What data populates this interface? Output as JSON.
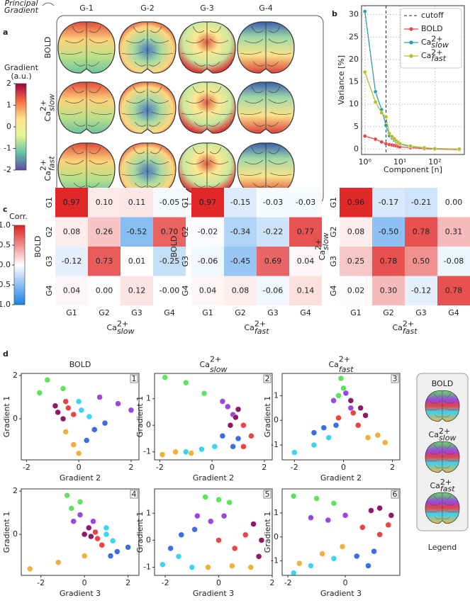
{
  "panel_labels": [
    "a",
    "b",
    "c",
    "d"
  ],
  "chart_data": [
    {
      "type": "brain-maps",
      "annotation": [
        "Principal",
        "Gradient"
      ],
      "column_titles": [
        "G-1",
        "G-2",
        "G-3",
        "G-4"
      ],
      "row_labels": [
        "BOLD",
        {
          "text": "Ca",
          "sup": "2+",
          "sub": "slow"
        },
        {
          "text": "Ca",
          "sup": "2+",
          "sub": "fast"
        }
      ],
      "colorbar": {
        "title": [
          "Gradient",
          "(a.u.)"
        ],
        "lim": [
          -2,
          2
        ],
        "ticks": [
          2,
          1,
          0,
          -1,
          -2
        ]
      }
    },
    {
      "type": "line",
      "xlabel": "Component [n]",
      "ylabel": "Variance [%]",
      "log_x": true,
      "grid": true,
      "legend": "upper right",
      "x": [
        1,
        2,
        3,
        4,
        5,
        6,
        7,
        8,
        9,
        10,
        20,
        50,
        100,
        500
      ],
      "series": [
        {
          "name": "BOLD",
          "color": "#e84545",
          "values": [
            2.9,
            2.2,
            1.6,
            1.2,
            1.0,
            0.9,
            0.8,
            0.7,
            0.6,
            0.5,
            0.3,
            0.1,
            0.0,
            -0.1
          ]
        },
        {
          "name": {
            "text": "Ca",
            "sup": "2+",
            "sub": "slow"
          },
          "color": "#2a9db5",
          "values": [
            30.7,
            12.8,
            8.8,
            5.3,
            3.0,
            2.5,
            2.0,
            1.6,
            1.3,
            1.1,
            0.6,
            0.3,
            0.1,
            0.0
          ]
        },
        {
          "name": {
            "text": "Ca",
            "sup": "2+",
            "sub": "fast"
          },
          "color": "#b5bd2a",
          "values": [
            17.2,
            10.5,
            8.1,
            7.2,
            3.5,
            2.8,
            2.3,
            1.8,
            1.5,
            1.2,
            0.7,
            0.3,
            0.1,
            0.0
          ]
        }
      ],
      "cutoff": {
        "name": "cutoff",
        "value": 4
      },
      "xlim": [
        0.8,
        700
      ],
      "xticks": [
        {
          "value": 1,
          "label": "10⁰"
        },
        {
          "value": 10,
          "label": "10¹"
        },
        {
          "value": 100,
          "label": "10²"
        }
      ],
      "ylim": [
        -1.2,
        32
      ],
      "yticks": [
        0,
        5,
        10,
        15,
        20,
        25,
        30
      ]
    },
    {
      "type": "heatmap",
      "ylabel": "BOLD",
      "xlabel": {
        "text": "Ca",
        "sup": "2+",
        "sub": "slow"
      },
      "row_labels": [
        "G1",
        "G2",
        "G3",
        "G4"
      ],
      "col_labels": [
        "G1",
        "G2",
        "G3",
        "G4"
      ],
      "values": [
        [
          0.97,
          0.1,
          0.11,
          -0.05
        ],
        [
          0.08,
          0.26,
          -0.52,
          0.7
        ],
        [
          -0.12,
          0.73,
          0.01,
          -0.25
        ],
        [
          0.04,
          0.0,
          0.12,
          -0.0
        ]
      ],
      "value_labels": [
        [
          "0.97",
          "0.10",
          "0.11",
          "-0.05"
        ],
        [
          "0.08",
          "0.26",
          "-0.52",
          "0.70"
        ],
        [
          "-0.12",
          "0.73",
          "0.01",
          "-0.25"
        ],
        [
          "0.04",
          "0.00",
          "0.12",
          "-0.00"
        ]
      ]
    },
    {
      "type": "heatmap",
      "ylabel": "BOLD",
      "xlabel": {
        "text": "Ca",
        "sup": "2+",
        "sub": "fast"
      },
      "row_labels": [
        "G1",
        "G2",
        "G3",
        "G4"
      ],
      "col_labels": [
        "G1",
        "G2",
        "G3",
        "G4"
      ],
      "values": [
        [
          0.97,
          -0.15,
          -0.03,
          -0.03
        ],
        [
          -0.02,
          -0.34,
          -0.22,
          0.77
        ],
        [
          -0.06,
          -0.45,
          0.69,
          0.04
        ],
        [
          0.04,
          0.08,
          -0.06,
          0.14
        ]
      ],
      "value_labels": [
        [
          "0.97",
          "-0.15",
          "-0.03",
          "-0.03"
        ],
        [
          "-0.02",
          "-0.34",
          "-0.22",
          "0.77"
        ],
        [
          "-0.06",
          "-0.45",
          "0.69",
          "0.04"
        ],
        [
          "0.04",
          "0.08",
          "-0.06",
          "0.14"
        ]
      ]
    },
    {
      "type": "heatmap",
      "ylabel": {
        "text": "Ca",
        "sup": "2+",
        "sub": "slow"
      },
      "xlabel": {
        "text": "Ca",
        "sup": "2+",
        "sub": "fast"
      },
      "row_labels": [
        "G1",
        "G2",
        "G3",
        "G4"
      ],
      "col_labels": [
        "G1",
        "G2",
        "G3",
        "G4"
      ],
      "values": [
        [
          0.96,
          -0.17,
          -0.21,
          0.0
        ],
        [
          0.08,
          -0.5,
          0.78,
          0.31
        ],
        [
          0.25,
          0.78,
          0.5,
          -0.08
        ],
        [
          0.02,
          0.3,
          -0.12,
          0.78
        ]
      ],
      "value_labels": [
        [
          "0.96",
          "-0.17",
          "-0.21",
          "0.00"
        ],
        [
          "0.08",
          "-0.50",
          "0.78",
          "0.31"
        ],
        [
          "0.25",
          "0.78",
          "0.50",
          "-0.08"
        ],
        [
          "0.02",
          "0.30",
          "-0.12",
          "0.78"
        ]
      ]
    },
    {
      "type": "scatter",
      "number": "1",
      "xlabel": "Gradient 2",
      "ylabel": "Gradient 1",
      "xlim": [
        -2.2,
        2.3
      ],
      "ylim": [
        -1.9,
        2.1
      ],
      "xticks": [
        -2,
        0,
        2
      ],
      "yticks": [
        0,
        2
      ],
      "series": [
        {
          "color": "#5ee35e",
          "x": [
            -1.2,
            -0.6,
            -1.5
          ],
          "y": [
            1.8,
            1.4,
            1.2
          ]
        },
        {
          "color": "#9c46e0",
          "x": [
            0.8,
            1.5,
            2.0
          ],
          "y": [
            1.0,
            0.7,
            0.4
          ]
        },
        {
          "color": "#3cd4f0",
          "x": [
            0.1,
            0.4,
            0.0
          ],
          "y": [
            0.4,
            0.1,
            0.8
          ]
        },
        {
          "color": "#3a6fe0",
          "x": [
            0.6,
            0.3,
            1.0
          ],
          "y": [
            -0.5,
            -1.0,
            -0.2
          ]
        },
        {
          "color": "#e84444",
          "x": [
            -0.4,
            -0.2,
            -0.5
          ],
          "y": [
            0.5,
            0.2,
            0.8
          ]
        },
        {
          "color": "#8b1a6b",
          "x": [
            -0.8,
            -0.6,
            -0.9
          ],
          "y": [
            0.3,
            0.0,
            0.6
          ]
        },
        {
          "color": "#f0b040",
          "x": [
            -0.5,
            -0.2,
            0.0
          ],
          "y": [
            -0.6,
            -1.2,
            -1.6
          ]
        }
      ]
    },
    {
      "type": "scatter",
      "number": "2",
      "xlabel": "Gradient 2",
      "ylabel": "Gradient 1",
      "xlim": [
        -2.2,
        2.3
      ],
      "ylim": [
        -1.3,
        1.95
      ],
      "xticks": [
        -2,
        0,
        2
      ],
      "yticks": [
        -1,
        0,
        1
      ],
      "series": [
        {
          "color": "#5ee35e",
          "x": [
            -1.8,
            -1.0,
            -0.3
          ],
          "y": [
            1.8,
            1.6,
            1.2
          ]
        },
        {
          "color": "#9c46e0",
          "x": [
            0.4,
            0.8,
            0.6
          ],
          "y": [
            0.9,
            0.4,
            0.7
          ]
        },
        {
          "color": "#3cd4f0",
          "x": [
            -1.0,
            -0.4,
            0.1
          ],
          "y": [
            -1.0,
            -0.9,
            -0.8
          ]
        },
        {
          "color": "#3a6fe0",
          "x": [
            0.4,
            0.8,
            1.0
          ],
          "y": [
            -0.4,
            -0.8,
            -0.5
          ]
        },
        {
          "color": "#e84444",
          "x": [
            1.2,
            1.5,
            1.2
          ],
          "y": [
            0.0,
            -0.4,
            -0.8
          ]
        },
        {
          "color": "#8b1a6b",
          "x": [
            0.9,
            0.7,
            1.0
          ],
          "y": [
            0.3,
            0.0,
            0.6
          ]
        },
        {
          "color": "#f0b040",
          "x": [
            -1.9,
            -1.4,
            -0.8
          ],
          "y": [
            -1.1,
            -1.0,
            -1.05
          ]
        }
      ]
    },
    {
      "type": "scatter",
      "number": "3",
      "xlabel": "Gradient 2",
      "ylabel": "Gradient 1",
      "xlim": [
        -2.5,
        2.3
      ],
      "ylim": [
        -1.6,
        1.9
      ],
      "xticks": [
        -2,
        0,
        2
      ],
      "yticks": [
        -1,
        0,
        1
      ],
      "series": [
        {
          "color": "#5ee35e",
          "x": [
            -0.1,
            0.0,
            -0.2
          ],
          "y": [
            1.7,
            1.3,
            1.0
          ]
        },
        {
          "color": "#9c46e0",
          "x": [
            -0.4,
            0.3,
            0.1
          ],
          "y": [
            0.8,
            0.5,
            1.1
          ]
        },
        {
          "color": "#3cd4f0",
          "x": [
            -2.0,
            -1.2,
            -0.6
          ],
          "y": [
            -1.3,
            -1.0,
            -0.7
          ]
        },
        {
          "color": "#3a6fe0",
          "x": [
            -0.8,
            -0.3,
            -1.2
          ],
          "y": [
            -0.3,
            -0.2,
            -0.5
          ]
        },
        {
          "color": "#e84444",
          "x": [
            -0.2,
            0.6,
            0.4
          ],
          "y": [
            0.1,
            -0.2,
            0.3
          ]
        },
        {
          "color": "#8b1a6b",
          "x": [
            0.7,
            0.3,
            0.9
          ],
          "y": [
            0.5,
            0.8,
            0.2
          ]
        },
        {
          "color": "#f0b040",
          "x": [
            1.0,
            1.7,
            1.4
          ],
          "y": [
            -0.7,
            -0.9,
            -0.6
          ]
        }
      ]
    },
    {
      "type": "scatter",
      "number": "4",
      "xlabel": "Gradient 3",
      "ylabel": "Gradient 1",
      "xlim": [
        -2.9,
        2.5
      ],
      "ylim": [
        -1.9,
        2.1
      ],
      "xticks": [
        -2,
        0,
        2
      ],
      "yticks": [
        0,
        2
      ],
      "series": [
        {
          "color": "#5ee35e",
          "x": [
            -0.8,
            -0.2,
            -0.6
          ],
          "y": [
            1.8,
            1.5,
            1.2
          ]
        },
        {
          "color": "#9c46e0",
          "x": [
            -0.2,
            0.4,
            -0.5
          ],
          "y": [
            0.9,
            0.6,
            0.6
          ]
        },
        {
          "color": "#3cd4f0",
          "x": [
            1.0,
            1.3,
            1.0
          ],
          "y": [
            0.0,
            -0.3,
            0.3
          ]
        },
        {
          "color": "#3a6fe0",
          "x": [
            1.5,
            2.0,
            1.2
          ],
          "y": [
            -0.8,
            -0.6,
            -1.0
          ]
        },
        {
          "color": "#e84444",
          "x": [
            0.6,
            0.5,
            0.8
          ],
          "y": [
            -0.2,
            0.1,
            -0.5
          ]
        },
        {
          "color": "#8b1a6b",
          "x": [
            0.2,
            0.0,
            0.3
          ],
          "y": [
            0.3,
            0.0,
            -0.1
          ]
        },
        {
          "color": "#f0b040",
          "x": [
            -2.5,
            -1.2,
            0.0
          ],
          "y": [
            -1.6,
            -1.3,
            -1.0
          ]
        }
      ]
    },
    {
      "type": "scatter",
      "number": "5",
      "xlabel": "Gradient 3",
      "ylabel": "Gradient 1",
      "xlim": [
        -2.4,
        2.0
      ],
      "ylim": [
        -1.3,
        1.9
      ],
      "xticks": [
        -2,
        0,
        2
      ],
      "yticks": [
        -1,
        0,
        1
      ],
      "series": [
        {
          "color": "#5ee35e",
          "x": [
            -0.5,
            0.0,
            0.4
          ],
          "y": [
            1.6,
            1.5,
            1.4
          ]
        },
        {
          "color": "#9c46e0",
          "x": [
            -0.8,
            -0.3,
            0.2
          ],
          "y": [
            0.9,
            0.7,
            0.9
          ]
        },
        {
          "color": "#3cd4f0",
          "x": [
            -2.1,
            -1.5,
            -1.0
          ],
          "y": [
            -0.9,
            -0.6,
            -1.0
          ]
        },
        {
          "color": "#3a6fe0",
          "x": [
            -1.8,
            -1.4,
            -0.9
          ],
          "y": [
            -0.3,
            0.2,
            0.4
          ]
        },
        {
          "color": "#e84444",
          "x": [
            0.0,
            0.6,
            1.0
          ],
          "y": [
            0.0,
            -0.3,
            0.2
          ]
        },
        {
          "color": "#8b1a6b",
          "x": [
            1.3,
            1.6,
            1.5
          ],
          "y": [
            0.6,
            0.0,
            -0.6
          ]
        },
        {
          "color": "#f0b040",
          "x": [
            -0.4,
            0.5,
            1.2
          ],
          "y": [
            -1.0,
            -0.95,
            -1.0
          ]
        }
      ]
    },
    {
      "type": "scatter",
      "number": "6",
      "xlabel": "Gradient 3",
      "ylabel": "Gradient 1",
      "xlim": [
        -2.2,
        1.9
      ],
      "ylim": [
        -1.6,
        2.0
      ],
      "xticks": [
        -2,
        0
      ],
      "yticks": [
        -1,
        0,
        1
      ],
      "series": [
        {
          "color": "#5ee35e",
          "x": [
            -1.8,
            -1.0,
            -0.4
          ],
          "y": [
            1.7,
            1.6,
            1.4
          ]
        },
        {
          "color": "#9c46e0",
          "x": [
            -1.2,
            -0.6,
            0.0
          ],
          "y": [
            0.8,
            0.7,
            0.9
          ]
        },
        {
          "color": "#3cd4f0",
          "x": [
            -1.8,
            -1.2,
            -0.4
          ],
          "y": [
            -1.5,
            -1.2,
            -0.9
          ]
        },
        {
          "color": "#3a6fe0",
          "x": [
            0.4,
            0.8,
            1.0
          ],
          "y": [
            -0.8,
            -1.2,
            -0.6
          ]
        },
        {
          "color": "#e84444",
          "x": [
            0.6,
            1.2,
            1.5
          ],
          "y": [
            0.4,
            0.1,
            0.5
          ]
        },
        {
          "color": "#8b1a6b",
          "x": [
            1.2,
            1.6,
            0.9
          ],
          "y": [
            1.2,
            0.9,
            1.1
          ]
        },
        {
          "color": "#f0b040",
          "x": [
            -1.6,
            -0.8,
            -0.1
          ],
          "y": [
            -1.1,
            -0.7,
            -0.4
          ]
        }
      ]
    }
  ],
  "corr_colorbar": {
    "title": "Corr.",
    "lim": [
      -1,
      1
    ],
    "ticks": [
      {
        "value": 1,
        "label": "1.0"
      },
      0.5,
      {
        "value": 0,
        "label": "0.0"
      },
      -0.5,
      {
        "value": -1,
        "label": "-1.0"
      }
    ]
  },
  "scatter_column_titles": [
    "BOLD",
    {
      "text": "Ca",
      "sup": "2+",
      "sub": "slow"
    },
    {
      "text": "Ca",
      "sup": "2+",
      "sub": "fast"
    }
  ],
  "legend": {
    "title": "Legend",
    "items": [
      "BOLD",
      {
        "text": "Ca",
        "sup": "2+",
        "sub": "slow"
      },
      {
        "text": "Ca",
        "sup": "2+",
        "sub": "fast"
      }
    ]
  }
}
